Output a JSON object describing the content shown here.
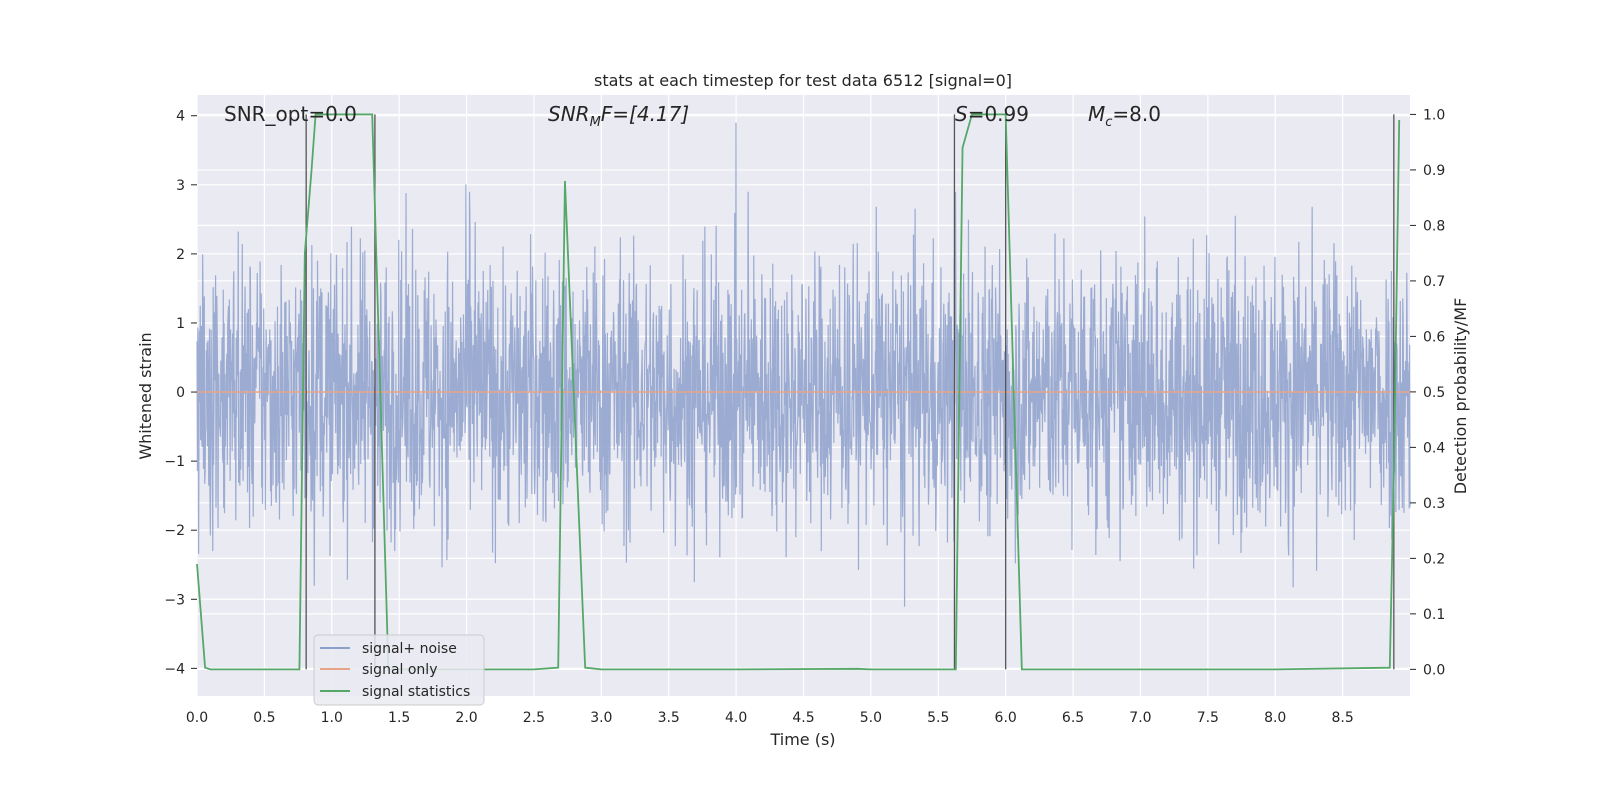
{
  "chart_data": {
    "type": "line",
    "title": "stats at each timestep for test data 6512 [signal=0]",
    "xlabel": "Time (s)",
    "ylabel_left": "Whitened strain",
    "ylabel_right": "Detection probability/MF",
    "xlim": [
      0.0,
      9.0
    ],
    "ylim_left": [
      -4.4,
      4.3
    ],
    "ylim_right": [
      -0.048,
      1.035
    ],
    "x_ticks": [
      "0.0",
      "0.5",
      "1.0",
      "1.5",
      "2.0",
      "2.5",
      "3.0",
      "3.5",
      "4.0",
      "4.5",
      "5.0",
      "5.5",
      "6.0",
      "6.5",
      "7.0",
      "7.5",
      "8.0",
      "8.5"
    ],
    "y_ticks_left": [
      "4",
      "3",
      "2",
      "1",
      "0",
      "−1",
      "−2",
      "−3",
      "−4"
    ],
    "y_ticks_right": [
      "1.0",
      "0.9",
      "0.8",
      "0.7",
      "0.6",
      "0.5",
      "0.4",
      "0.3",
      "0.2",
      "0.1",
      "0.0"
    ],
    "grid": true,
    "legend_position": "lower-left",
    "annotations": {
      "snr_opt": "SNR_opt=0.0",
      "snr_mf_base": "SNR",
      "snr_mf_sub": "M",
      "snr_mf_rest": "F=[4.17]",
      "s_italic": "S",
      "s_rest": "=0.99",
      "mc_base": "M",
      "mc_sub": "c",
      "mc_rest": "=8.0"
    },
    "series": [
      {
        "name": "signal+ noise",
        "color": "#8da0cb",
        "description_of_values": "whitened noise, approx gaussian, std ~1, range -4 to 4",
        "amplitude_envelope": 2.3
      },
      {
        "name": "signal only",
        "color": "#e8a488",
        "x": [
          0.0,
          9.0
        ],
        "y": [
          0.0,
          0.0
        ]
      },
      {
        "name": "signal statistics",
        "color": "#55a868",
        "x": [
          0.0,
          0.06,
          0.1,
          0.2,
          0.76,
          0.8,
          0.85,
          0.88,
          1.3,
          1.42,
          1.5,
          2.0,
          2.5,
          2.68,
          2.73,
          2.88,
          3.0,
          4.0,
          4.9,
          5.0,
          5.63,
          5.68,
          5.75,
          6.0,
          6.12,
          6.5,
          7.0,
          8.0,
          8.85,
          8.88,
          8.92
        ],
        "y": [
          0.19,
          0.003,
          0.0,
          0.0,
          0.0,
          0.75,
          0.9,
          1.0,
          1.0,
          0.0,
          0.0,
          0.0,
          0.0,
          0.003,
          0.88,
          0.003,
          0.0,
          0.0,
          0.001,
          0.0,
          0.0,
          0.94,
          1.0,
          1.0,
          0.0,
          0.0,
          0.0,
          0.0,
          0.003,
          0.35,
          0.99
        ]
      }
    ],
    "vlines": [
      0.81,
      1.32,
      5.62,
      6.0,
      8.88
    ]
  }
}
